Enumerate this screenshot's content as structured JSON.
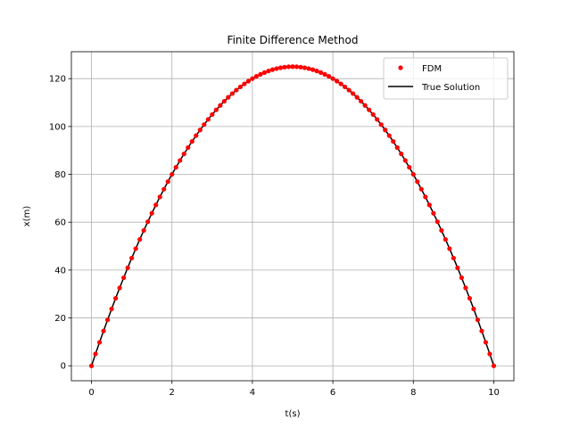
{
  "chart_data": {
    "type": "line",
    "title": "Finite Difference Method",
    "xlabel": "t(s)",
    "ylabel": "x(m)",
    "xlim": [
      -0.5,
      10.5
    ],
    "ylim": [
      -6.25,
      131.25
    ],
    "xticks": [
      0,
      2,
      4,
      6,
      8,
      10
    ],
    "yticks": [
      0,
      20,
      40,
      60,
      80,
      100,
      120
    ],
    "grid": true,
    "legend_position": "top-right",
    "series": [
      {
        "name": "FDM",
        "style": "markers",
        "color": "#ff0000",
        "x": [
          0.0,
          0.1,
          0.2,
          0.3,
          0.4,
          0.5,
          0.6,
          0.7,
          0.8,
          0.9,
          1.0,
          1.1,
          1.2,
          1.3,
          1.4,
          1.5,
          1.6,
          1.7,
          1.8,
          1.9,
          2.0,
          2.1,
          2.2,
          2.3,
          2.4,
          2.5,
          2.6,
          2.7,
          2.8,
          2.9,
          3.0,
          3.1,
          3.2,
          3.3,
          3.4,
          3.5,
          3.6,
          3.7,
          3.8,
          3.9,
          4.0,
          4.1,
          4.2,
          4.3,
          4.4,
          4.5,
          4.6,
          4.7,
          4.8,
          4.9,
          5.0,
          5.1,
          5.2,
          5.3,
          5.4,
          5.5,
          5.6,
          5.7,
          5.8,
          5.9,
          6.0,
          6.1,
          6.2,
          6.3,
          6.4,
          6.5,
          6.6,
          6.7,
          6.8,
          6.9,
          7.0,
          7.1,
          7.2,
          7.3,
          7.4,
          7.5,
          7.6,
          7.7,
          7.8,
          7.9,
          8.0,
          8.1,
          8.2,
          8.3,
          8.4,
          8.5,
          8.6,
          8.7,
          8.8,
          8.9,
          9.0,
          9.1,
          9.2,
          9.3,
          9.4,
          9.5,
          9.6,
          9.7,
          9.8,
          9.9,
          10.0
        ],
        "y": [
          0.0,
          4.95,
          9.8,
          14.55,
          19.2,
          23.75,
          28.2,
          32.55,
          36.8,
          40.95,
          45.0,
          48.95,
          52.8,
          56.55,
          60.2,
          63.75,
          67.2,
          70.55,
          73.8,
          76.95,
          80.0,
          82.95,
          85.8,
          88.55,
          91.2,
          93.75,
          96.2,
          98.55,
          100.8,
          102.95,
          105.0,
          106.95,
          108.8,
          110.55,
          112.2,
          113.75,
          115.2,
          116.55,
          117.8,
          118.95,
          120.0,
          120.95,
          121.8,
          122.55,
          123.2,
          123.75,
          124.2,
          124.55,
          124.8,
          124.95,
          125.0,
          124.95,
          124.8,
          124.55,
          124.2,
          123.75,
          123.2,
          122.55,
          121.8,
          120.95,
          120.0,
          118.95,
          117.8,
          116.55,
          115.2,
          113.75,
          112.2,
          110.55,
          108.8,
          106.95,
          105.0,
          102.95,
          100.8,
          98.55,
          96.2,
          93.75,
          91.2,
          88.55,
          85.8,
          82.95,
          80.0,
          76.95,
          73.8,
          70.55,
          67.2,
          63.75,
          60.2,
          56.55,
          52.8,
          48.95,
          45.0,
          40.95,
          36.8,
          32.55,
          28.2,
          23.75,
          19.2,
          14.55,
          9.8,
          4.95,
          0.0
        ]
      },
      {
        "name": "True Solution",
        "style": "line",
        "color": "#000000",
        "x": [
          0.0,
          0.1,
          0.2,
          0.3,
          0.4,
          0.5,
          0.6,
          0.7,
          0.8,
          0.9,
          1.0,
          1.1,
          1.2,
          1.3,
          1.4,
          1.5,
          1.6,
          1.7,
          1.8,
          1.9,
          2.0,
          2.1,
          2.2,
          2.3,
          2.4,
          2.5,
          2.6,
          2.7,
          2.8,
          2.9,
          3.0,
          3.1,
          3.2,
          3.3,
          3.4,
          3.5,
          3.6,
          3.7,
          3.8,
          3.9,
          4.0,
          4.1,
          4.2,
          4.3,
          4.4,
          4.5,
          4.6,
          4.7,
          4.8,
          4.9,
          5.0,
          5.1,
          5.2,
          5.3,
          5.4,
          5.5,
          5.6,
          5.7,
          5.8,
          5.9,
          6.0,
          6.1,
          6.2,
          6.3,
          6.4,
          6.5,
          6.6,
          6.7,
          6.8,
          6.9,
          7.0,
          7.1,
          7.2,
          7.3,
          7.4,
          7.5,
          7.6,
          7.7,
          7.8,
          7.9,
          8.0,
          8.1,
          8.2,
          8.3,
          8.4,
          8.5,
          8.6,
          8.7,
          8.8,
          8.9,
          9.0,
          9.1,
          9.2,
          9.3,
          9.4,
          9.5,
          9.6,
          9.7,
          9.8,
          9.9,
          10.0
        ],
        "y": [
          0.0,
          4.95,
          9.8,
          14.55,
          19.2,
          23.75,
          28.2,
          32.55,
          36.8,
          40.95,
          45.0,
          48.95,
          52.8,
          56.55,
          60.2,
          63.75,
          67.2,
          70.55,
          73.8,
          76.95,
          80.0,
          82.95,
          85.8,
          88.55,
          91.2,
          93.75,
          96.2,
          98.55,
          100.8,
          102.95,
          105.0,
          106.95,
          108.8,
          110.55,
          112.2,
          113.75,
          115.2,
          116.55,
          117.8,
          118.95,
          120.0,
          120.95,
          121.8,
          122.55,
          123.2,
          123.75,
          124.2,
          124.55,
          124.8,
          124.95,
          125.0,
          124.95,
          124.8,
          124.55,
          124.2,
          123.75,
          123.2,
          122.55,
          121.8,
          120.95,
          120.0,
          118.95,
          117.8,
          116.55,
          115.2,
          113.75,
          112.2,
          110.55,
          108.8,
          106.95,
          105.0,
          102.95,
          100.8,
          98.55,
          96.2,
          93.75,
          91.2,
          88.55,
          85.8,
          82.95,
          80.0,
          76.95,
          73.8,
          70.55,
          67.2,
          63.75,
          60.2,
          56.55,
          52.8,
          48.95,
          45.0,
          40.95,
          36.8,
          32.55,
          28.2,
          23.75,
          19.2,
          14.55,
          9.8,
          4.95,
          0.0
        ]
      }
    ]
  }
}
